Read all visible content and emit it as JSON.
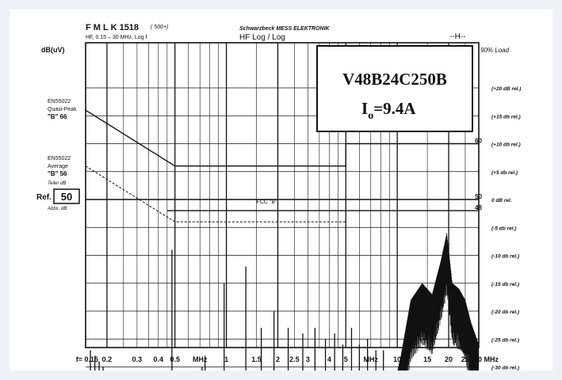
{
  "header": {
    "model": "F M L K  1518",
    "model_note": "( 500+)",
    "range": "HF, 0.15 – 30 MHz, Log f",
    "company": "Schwarzbeck MESS ELEKTRONIK",
    "mode": "HF Log / Log",
    "corner_mark": "--H--",
    "scribble": "90% Load"
  },
  "chart_data": {
    "type": "line",
    "title": "V48B24C250B",
    "subtitle_main": "I",
    "subtitle_sub": "o",
    "subtitle_rest": "=9.4A",
    "ylabel": "dB(uV)",
    "xlabel": "MHz",
    "x_scale": "log",
    "xlim": [
      0.15,
      30
    ],
    "ref_level_db": 50,
    "ref_label": "Ref.",
    "ref_top_note": "Teiler dB",
    "ref_bottom_note": "Abbs. dB",
    "x_ticks": [
      {
        "value": 0.15,
        "label": "f= 0.15"
      },
      {
        "value": 0.2,
        "label": "0.2"
      },
      {
        "value": 0.3,
        "label": "0.3"
      },
      {
        "value": 0.4,
        "label": "0.4"
      },
      {
        "value": 0.5,
        "label": "0.5"
      },
      {
        "value": 0.7,
        "label": "MHz"
      },
      {
        "value": 1,
        "label": "1"
      },
      {
        "value": 1.5,
        "label": "1.5"
      },
      {
        "value": 2,
        "label": "2"
      },
      {
        "value": 2.5,
        "label": "2.5"
      },
      {
        "value": 3,
        "label": "3"
      },
      {
        "value": 4,
        "label": "4"
      },
      {
        "value": 5,
        "label": "5"
      },
      {
        "value": 7,
        "label": "MHz"
      },
      {
        "value": 10,
        "label": "10"
      },
      {
        "value": 15,
        "label": "15"
      },
      {
        "value": 20,
        "label": "20"
      },
      {
        "value": 25,
        "label": "25"
      },
      {
        "value": 30,
        "label": "30 MHz"
      }
    ],
    "right_labels": [
      {
        "db": 70,
        "label": "(+20 dB rel.)"
      },
      {
        "db": 65,
        "label": "(+15 db rel.)"
      },
      {
        "db": 60,
        "label": "(+10 db rel.)"
      },
      {
        "db": 55,
        "label": "(+5 db rel.)"
      },
      {
        "db": 50,
        "label": "0 dB rel."
      },
      {
        "db": 45,
        "label": "(-5 db rel.)"
      },
      {
        "db": 40,
        "label": "(-10 db rel.)"
      },
      {
        "db": 35,
        "label": "(-15 db rel.)"
      },
      {
        "db": 30,
        "label": "(-20 db rel.)"
      },
      {
        "db": 25,
        "label": "(-25 db rel.)"
      },
      {
        "db": 20,
        "label": "(-30 db rel.)"
      }
    ],
    "right_numbers": [
      {
        "db": 60,
        "label": "60"
      },
      {
        "db": 50,
        "label": "50"
      },
      {
        "db": 48,
        "label": "48"
      }
    ],
    "limits": [
      {
        "name": "EN55022 Quasi-Peak \"B\"",
        "label_lines": [
          "EN55022",
          "Quasi-Peak",
          "\"B\"  66"
        ],
        "points": [
          [
            0.15,
            66
          ],
          [
            0.5,
            56
          ],
          [
            5,
            56
          ],
          [
            5,
            60
          ],
          [
            30,
            60
          ]
        ],
        "dashed": false
      },
      {
        "name": "EN55022 Average \"B\"",
        "label_lines": [
          "EN55022",
          "Average",
          "\"B\"  56"
        ],
        "points": [
          [
            0.15,
            56
          ],
          [
            0.5,
            46
          ],
          [
            5,
            46
          ],
          [
            5,
            50
          ],
          [
            30,
            50
          ]
        ],
        "dashed": true
      },
      {
        "name": "FCC \"B\"",
        "label": "FCC \"B\"",
        "points": [
          [
            0.45,
            48
          ],
          [
            30,
            48
          ]
        ],
        "dashed": false
      }
    ],
    "spikes": [
      {
        "x": 0.16,
        "y": 23
      },
      {
        "x": 0.17,
        "y": 22
      },
      {
        "x": 0.18,
        "y": 21
      },
      {
        "x": 0.19,
        "y": 20
      },
      {
        "x": 0.2,
        "y": 18
      },
      {
        "x": 0.24,
        "y": 17
      },
      {
        "x": 0.3,
        "y": 16
      },
      {
        "x": 0.38,
        "y": 16
      },
      {
        "x": 0.48,
        "y": 41
      },
      {
        "x": 0.72,
        "y": 20
      },
      {
        "x": 0.75,
        "y": 22
      },
      {
        "x": 0.8,
        "y": 17
      },
      {
        "x": 0.97,
        "y": 35
      },
      {
        "x": 1.3,
        "y": 38
      },
      {
        "x": 1.6,
        "y": 27
      },
      {
        "x": 1.9,
        "y": 30
      },
      {
        "x": 2.3,
        "y": 27
      },
      {
        "x": 2.8,
        "y": 26
      },
      {
        "x": 3.3,
        "y": 27
      },
      {
        "x": 3.8,
        "y": 25
      },
      {
        "x": 4.3,
        "y": 26
      },
      {
        "x": 4.8,
        "y": 24
      },
      {
        "x": 5.4,
        "y": 27
      },
      {
        "x": 6,
        "y": 24
      },
      {
        "x": 6.7,
        "y": 25
      },
      {
        "x": 7.5,
        "y": 23
      },
      {
        "x": 8.3,
        "y": 23
      }
    ],
    "noise_floor_db": 16,
    "hf_band": {
      "from": 9.5,
      "to": 30,
      "envelope": [
        [
          9.5,
          16
        ],
        [
          10.5,
          22
        ],
        [
          12,
          32
        ],
        [
          14,
          35
        ],
        [
          16,
          33
        ],
        [
          18,
          39
        ],
        [
          19.5,
          44
        ],
        [
          21,
          35
        ],
        [
          23,
          34
        ],
        [
          25,
          32
        ],
        [
          27,
          28
        ],
        [
          30,
          24
        ]
      ]
    }
  }
}
